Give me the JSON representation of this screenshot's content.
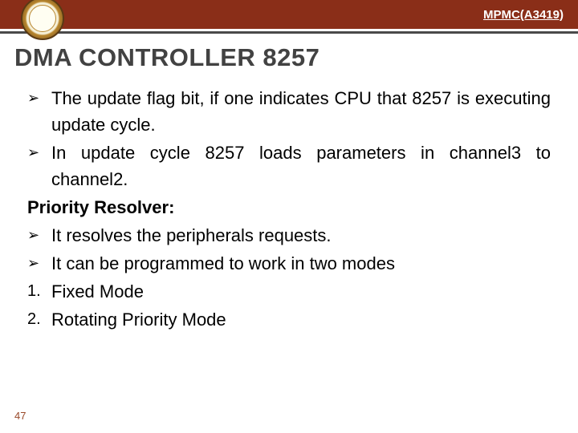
{
  "header": {
    "course_code": "MPMC(A3419)"
  },
  "title": "DMA CONTROLLER 8257",
  "bullets": {
    "b1": "The update flag bit, if one indicates CPU that 8257 is executing update cycle.",
    "b2": "In update cycle 8257 loads parameters in channel3 to channel2.",
    "priority_label": "Priority Resolver:",
    "b3": "It resolves the peripherals requests.",
    "b4": "It can be programmed to work in two modes",
    "n1": "Fixed Mode",
    "n2": "Rotating Priority Mode"
  },
  "page_number": "47",
  "marks": {
    "arrow": "➢",
    "one": "1.",
    "two": "2."
  }
}
